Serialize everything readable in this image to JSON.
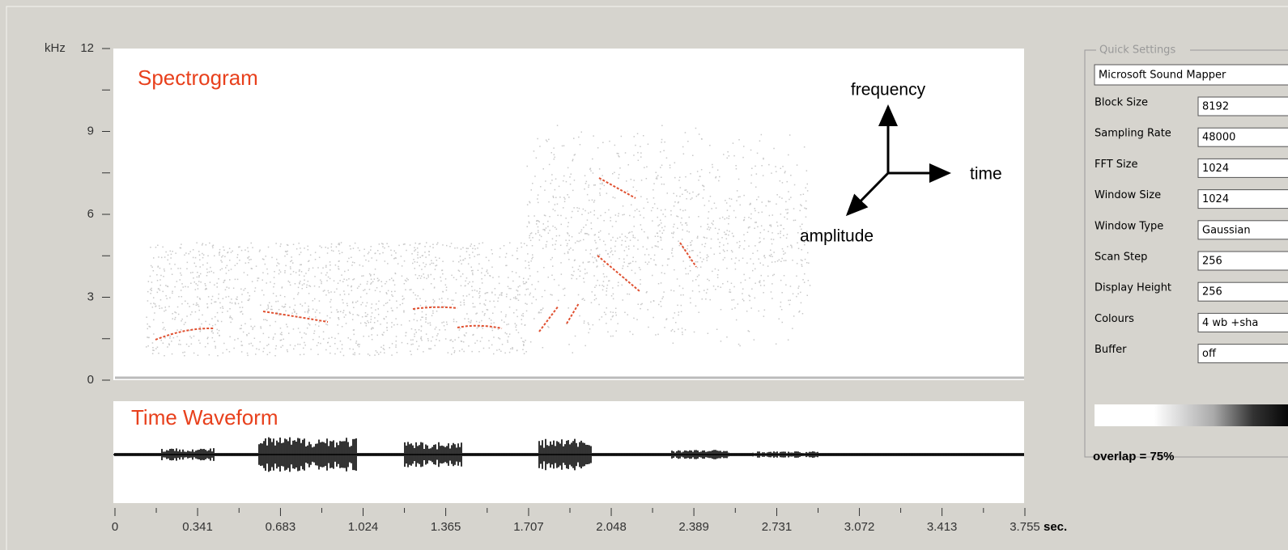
{
  "axes": {
    "y_unit": "kHz",
    "ylim": [
      0,
      12
    ],
    "yticks": [
      0,
      3,
      6,
      9,
      12
    ],
    "x_unit": "sec.",
    "xlim": [
      0,
      3.755
    ],
    "xticks": [
      0,
      0.341,
      0.683,
      1.024,
      1.365,
      1.707,
      2.048,
      2.389,
      2.731,
      3.072,
      3.413,
      3.755
    ]
  },
  "annotations": {
    "spectrogram": "Spectrogram",
    "waveform": "Time Waveform",
    "frequency": "frequency",
    "time": "time",
    "amplitude": "amplitude"
  },
  "settings": {
    "title": "Quick Settings",
    "device": "Microsoft Sound Mapper",
    "fields": [
      {
        "label": "Block Size",
        "value": "8192"
      },
      {
        "label": "Sampling Rate",
        "value": "48000"
      },
      {
        "label": "FFT Size",
        "value": "1024"
      },
      {
        "label": "Window Size",
        "value": "1024"
      },
      {
        "label": "Window Type",
        "value": "Gaussian"
      },
      {
        "label": "Scan Step",
        "value": "256"
      },
      {
        "label": "Display Height",
        "value": "256"
      },
      {
        "label": "Colours",
        "value": "4 wb +sha"
      },
      {
        "label": "Buffer",
        "value": "off"
      }
    ],
    "overlap": "overlap = 75%"
  }
}
